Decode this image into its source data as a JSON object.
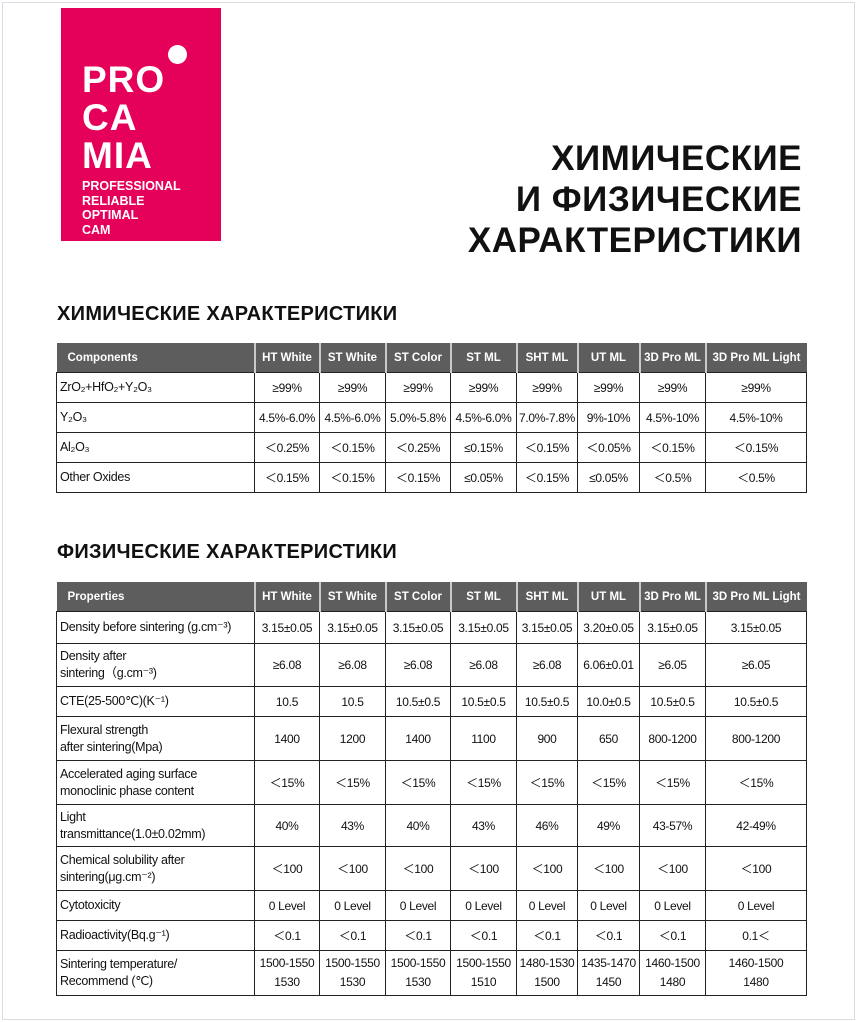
{
  "logo": {
    "lines": [
      "PRO",
      "CA",
      "MIA"
    ],
    "tagline": [
      "PROFESSIONAL",
      "RELIABLE",
      "OPTIMAL",
      "CAM"
    ],
    "color": "#e5005a"
  },
  "title": [
    "ХИМИЧЕСКИЕ",
    "И ФИЗИЧЕСКИЕ",
    "ХАРАКТЕРИСТИКИ"
  ],
  "chemical": {
    "heading": "ХИМИЧЕСКИЕ ХАРАКТЕРИСТИКИ",
    "columns": [
      "Components",
      "HT White",
      "ST White",
      "ST Color",
      "ST ML",
      "SHT ML",
      "UT ML",
      "3D Pro ML",
      "3D Pro ML Light"
    ],
    "rows": [
      {
        "label": [
          "ZrO₂+HfO₂+Y₂O₃"
        ],
        "values": [
          "≥99%",
          "≥99%",
          "≥99%",
          "≥99%",
          "≥99%",
          "≥99%",
          "≥99%",
          "≥99%"
        ]
      },
      {
        "label": [
          "Y₂O₃"
        ],
        "values": [
          "4.5%-6.0%",
          "4.5%-6.0%",
          "5.0%-5.8%",
          "4.5%-6.0%",
          "7.0%-7.8%",
          "9%-10%",
          "4.5%-10%",
          "4.5%-10%"
        ]
      },
      {
        "label": [
          "Al₂O₃"
        ],
        "values": [
          "＜0.25%",
          "＜0.15%",
          "＜0.25%",
          "≤0.15%",
          "＜0.15%",
          "＜0.05%",
          "＜0.15%",
          "＜0.15%"
        ]
      },
      {
        "label": [
          "Other Oxides"
        ],
        "values": [
          "＜0.15%",
          "＜0.15%",
          "＜0.15%",
          "≤0.05%",
          "＜0.15%",
          "≤0.05%",
          "＜0.5%",
          "＜0.5%"
        ]
      }
    ]
  },
  "physical": {
    "heading": "ФИЗИЧЕСКИЕ ХАРАКТЕРИСТИКИ",
    "columns": [
      "Properties",
      "HT White",
      "ST White",
      "ST Color",
      "ST ML",
      "SHT ML",
      "UT ML",
      "3D Pro ML",
      "3D Pro ML Light"
    ],
    "rows": [
      {
        "label": [
          "Density before sintering (g.cm⁻³)"
        ],
        "values": [
          "3.15±0.05",
          "3.15±0.05",
          "3.15±0.05",
          "3.15±0.05",
          "3.15±0.05",
          "3.20±0.05",
          "3.15±0.05",
          "3.15±0.05"
        ]
      },
      {
        "label": [
          "Density after",
          "sintering（g.cm⁻³)"
        ],
        "values": [
          "≥6.08",
          "≥6.08",
          "≥6.08",
          "≥6.08",
          "≥6.08",
          "6.06±0.01",
          "≥6.05",
          "≥6.05"
        ]
      },
      {
        "label": [
          "CTE(25-500℃)(K⁻¹)"
        ],
        "values": [
          "10.5",
          "10.5",
          "10.5±0.5",
          "10.5±0.5",
          "10.5±0.5",
          "10.0±0.5",
          "10.5±0.5",
          "10.5±0.5"
        ]
      },
      {
        "label": [
          "Flexural strength",
          "after sintering(Mpa)"
        ],
        "values": [
          "1400",
          "1200",
          "1400",
          "1100",
          "900",
          "650",
          "800-1200",
          "800-1200"
        ]
      },
      {
        "label": [
          "Accelerated aging surface",
          "monoclinic phase content"
        ],
        "values": [
          "＜15%",
          "＜15%",
          "＜15%",
          "＜15%",
          "＜15%",
          "＜15%",
          "＜15%",
          "＜15%"
        ]
      },
      {
        "label": [
          "Light",
          "transmittance(1.0±0.02mm)"
        ],
        "values": [
          "40%",
          "43%",
          "40%",
          "43%",
          "46%",
          "49%",
          "43-57%",
          "42-49%"
        ]
      },
      {
        "label": [
          "Chemical solubility after",
          "sintering(μg.cm⁻²)"
        ],
        "values": [
          "＜100",
          "＜100",
          "＜100",
          "＜100",
          "＜100",
          "＜100",
          "＜100",
          "＜100"
        ]
      },
      {
        "label": [
          "Cytotoxicity"
        ],
        "values": [
          "0 Level",
          "0 Level",
          "0 Level",
          "0 Level",
          "0 Level",
          "0 Level",
          "0 Level",
          "0 Level"
        ]
      },
      {
        "label": [
          "Radioactivity(Bq.g⁻¹)"
        ],
        "values": [
          "＜0.1",
          "＜0.1",
          "＜0.1",
          "＜0.1",
          "＜0.1",
          "＜0.1",
          "＜0.1",
          "0.1＜"
        ]
      },
      {
        "label": [
          "Sintering temperature/",
          "Recommend (℃)"
        ],
        "values": [
          [
            "1500-1550",
            "1530"
          ],
          [
            "1500-1550",
            "1530"
          ],
          [
            "1500-1550",
            "1530"
          ],
          [
            "1500-1550",
            "1510"
          ],
          [
            "1480-1530",
            "1500"
          ],
          [
            "1435-1470",
            "1450"
          ],
          [
            "1460-1500",
            "1480"
          ],
          [
            "1460-1500",
            "1480"
          ]
        ]
      }
    ]
  }
}
